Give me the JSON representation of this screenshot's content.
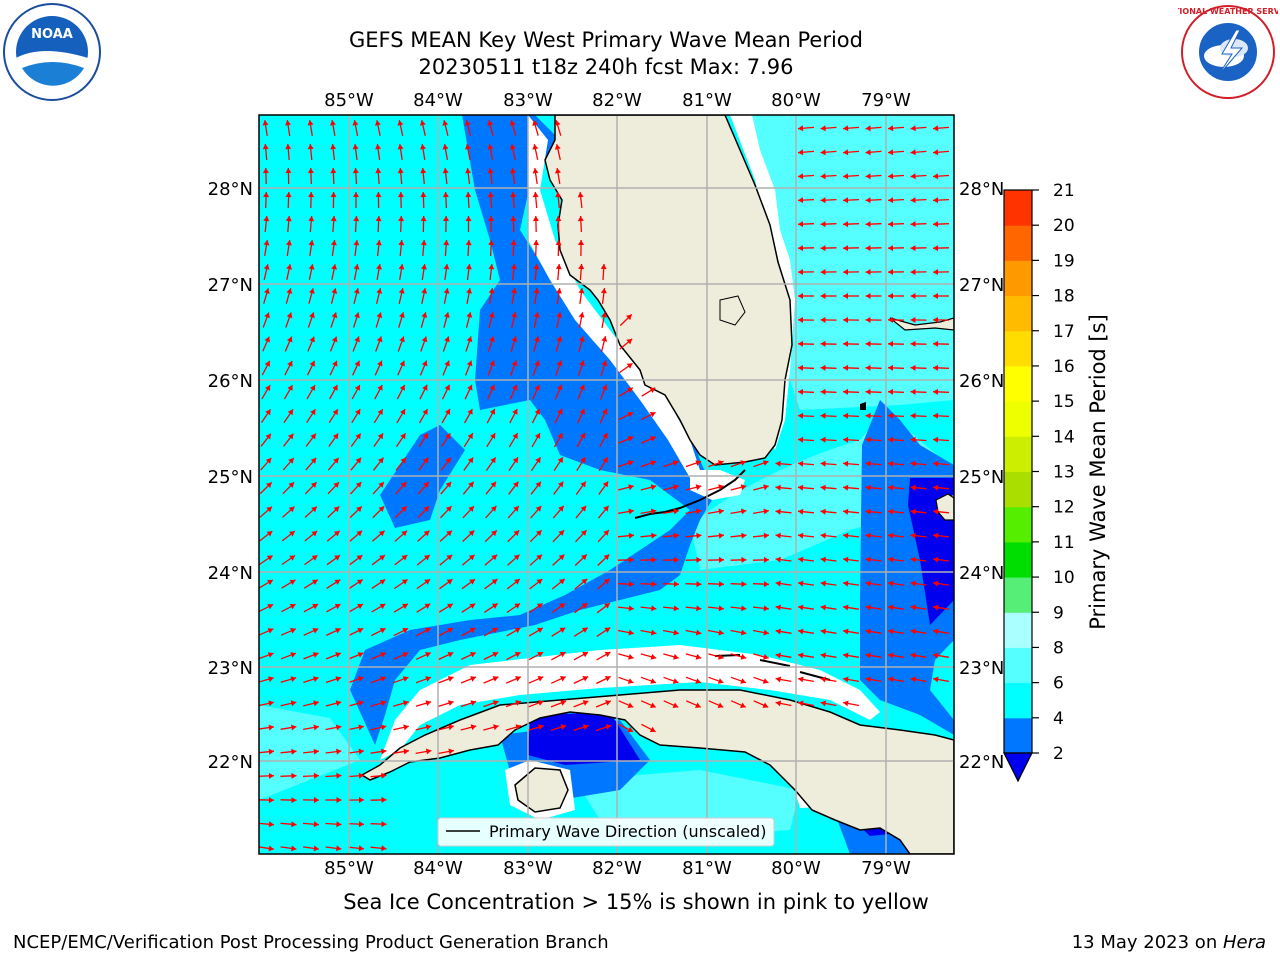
{
  "header": {
    "title_line1": "GEFS MEAN Key West Primary Wave Mean Period",
    "title_line2": "20230511 t18z 240h fcst   Max: 7.96"
  },
  "logos": {
    "left": {
      "icon": "noaa-logo-icon",
      "text": "NOAA"
    },
    "right": {
      "icon": "nws-logo-icon",
      "text": "NATIONAL WEATHER SERVICE"
    }
  },
  "map": {
    "lon_labels": [
      "85°W",
      "84°W",
      "83°W",
      "82°W",
      "81°W",
      "80°W",
      "79°W"
    ],
    "lat_labels": [
      "28°N",
      "27°N",
      "26°N",
      "25°N",
      "24°N",
      "23°N",
      "22°N"
    ],
    "legend_label": "Primary Wave Direction (unscaled)",
    "colors": {
      "land": "#eeeddc",
      "ocean_4_6": "#00ffff",
      "ocean_6_8": "#55ffff",
      "ocean_2_4": "#0077ff",
      "ocean_lt_2": "#0000ee",
      "arrow": "#ff0000"
    }
  },
  "colorbar": {
    "label": "Primary Wave Mean Period [s]",
    "ticks": [
      "2",
      "4",
      "6",
      "8",
      "9",
      "10",
      "11",
      "12",
      "13",
      "14",
      "15",
      "16",
      "17",
      "18",
      "19",
      "20",
      "21"
    ],
    "colors": [
      "#0077ff",
      "#00ffff",
      "#55ffff",
      "#aaffff",
      "#55ee77",
      "#00dd00",
      "#55ee00",
      "#aadd00",
      "#ccee00",
      "#eeff00",
      "#ffff00",
      "#ffdd00",
      "#ffbb00",
      "#ff9900",
      "#ff6600",
      "#ff3300"
    ],
    "under_color": "#0000ee"
  },
  "note": "Sea Ice Concentration > 15% is shown in pink to yellow",
  "footer": {
    "left": "NCEP/EMC/Verification Post Processing Product Generation Branch",
    "right_prefix": "13 May 2023 on ",
    "right_host": "Hera"
  }
}
